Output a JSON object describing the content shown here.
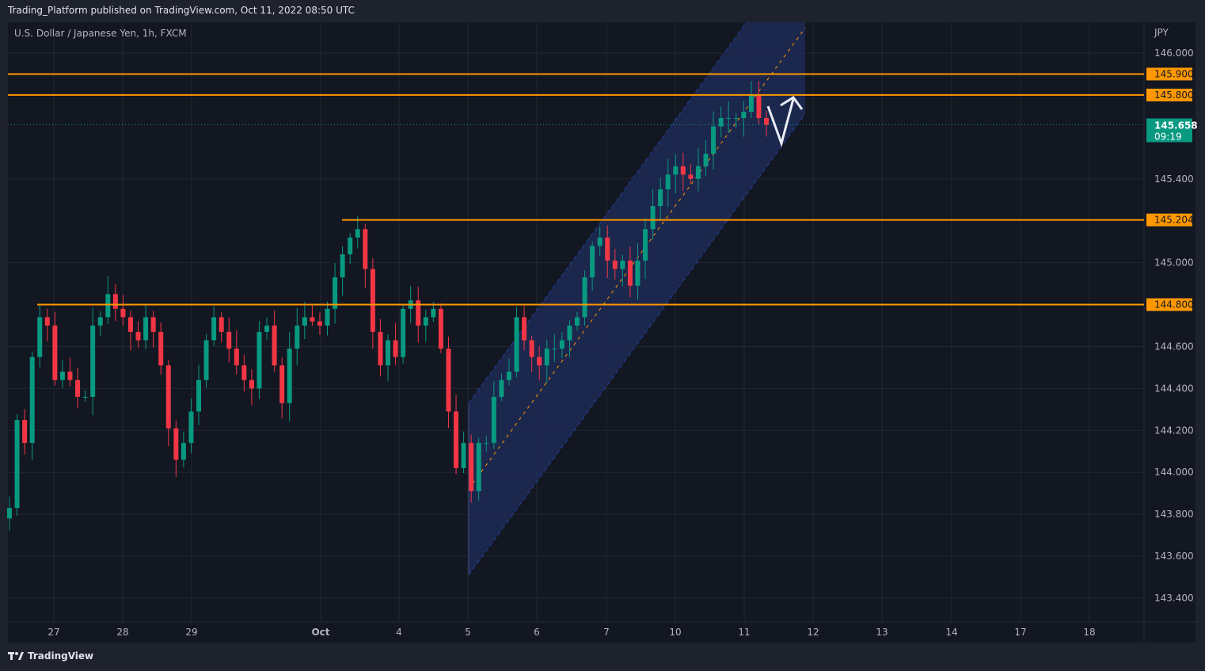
{
  "header": {
    "publisher_line": "Trading_Platform published on TradingView.com, Oct 11, 2022 08:50 UTC",
    "symbol_line": "U.S. Dollar / Japanese Yen, 1h, FXCM"
  },
  "footer": {
    "brand": "TradingView"
  },
  "colors": {
    "background": "#131722",
    "up": "#089981",
    "down": "#f23645",
    "level_line": "#ff9800",
    "channel_fill": "#1e2a55",
    "channel_border": "#2962ff",
    "price_badge": "#089981"
  },
  "chart_data": {
    "type": "candlestick",
    "title": "U.S. Dollar / Japanese Yen, 1h, FXCM",
    "currency_label": "JPY",
    "ylim": [
      143.3,
      146.2
    ],
    "y_ticks": [
      "146.000",
      "145.400",
      "145.000",
      "144.600",
      "144.400",
      "144.200",
      "144.000",
      "143.800",
      "143.600",
      "143.400"
    ],
    "x_ticks": [
      "27",
      "28",
      "29",
      "Oct",
      "4",
      "5",
      "6",
      "7",
      "10",
      "11",
      "12",
      "13",
      "14",
      "17",
      "18"
    ],
    "grid": true,
    "closes": [
      143.83,
      144.25,
      144.14,
      144.55,
      144.74,
      144.7,
      144.44,
      144.48,
      144.44,
      144.36,
      144.36,
      144.7,
      144.74,
      144.85,
      144.78,
      144.74,
      144.67,
      144.63,
      144.74,
      144.67,
      144.51,
      144.21,
      144.06,
      144.14,
      144.29,
      144.44,
      144.63,
      144.74,
      144.67,
      144.59,
      144.51,
      144.44,
      144.4,
      144.67,
      144.7,
      144.51,
      144.33,
      144.59,
      144.7,
      144.74,
      144.72,
      144.7,
      144.78,
      144.93,
      145.04,
      145.12,
      145.16,
      144.97,
      144.67,
      144.51,
      144.63,
      144.55,
      144.78,
      144.82,
      144.7,
      144.74,
      144.78,
      144.59,
      144.29,
      144.02,
      144.14,
      143.91,
      144.14,
      144.14,
      144.36,
      144.44,
      144.48,
      144.74,
      144.63,
      144.55,
      144.51,
      144.59,
      144.59,
      144.63,
      144.7,
      144.74,
      144.93,
      145.08,
      145.12,
      145.01,
      144.97,
      145.01,
      144.89,
      145.01,
      145.16,
      145.27,
      145.35,
      145.42,
      145.46,
      145.42,
      145.4,
      145.46,
      145.52,
      145.65,
      145.69,
      145.69,
      145.69,
      145.72,
      145.8,
      145.69,
      145.658
    ],
    "levels": [
      {
        "price": 145.9,
        "label": "145.900"
      },
      {
        "price": 145.8,
        "label": "145.800"
      },
      {
        "price": 145.204,
        "label": "145.204"
      },
      {
        "price": 144.8,
        "label": "144.800"
      }
    ],
    "last_price": {
      "price": 145.658,
      "label": "145.658",
      "countdown": "09:19"
    },
    "channel": {
      "start": "5",
      "end": "11 (late)",
      "upper_start": 144.33,
      "lower_start": 143.51,
      "lower_end": 145.71,
      "upper_end": 146.53
    }
  }
}
